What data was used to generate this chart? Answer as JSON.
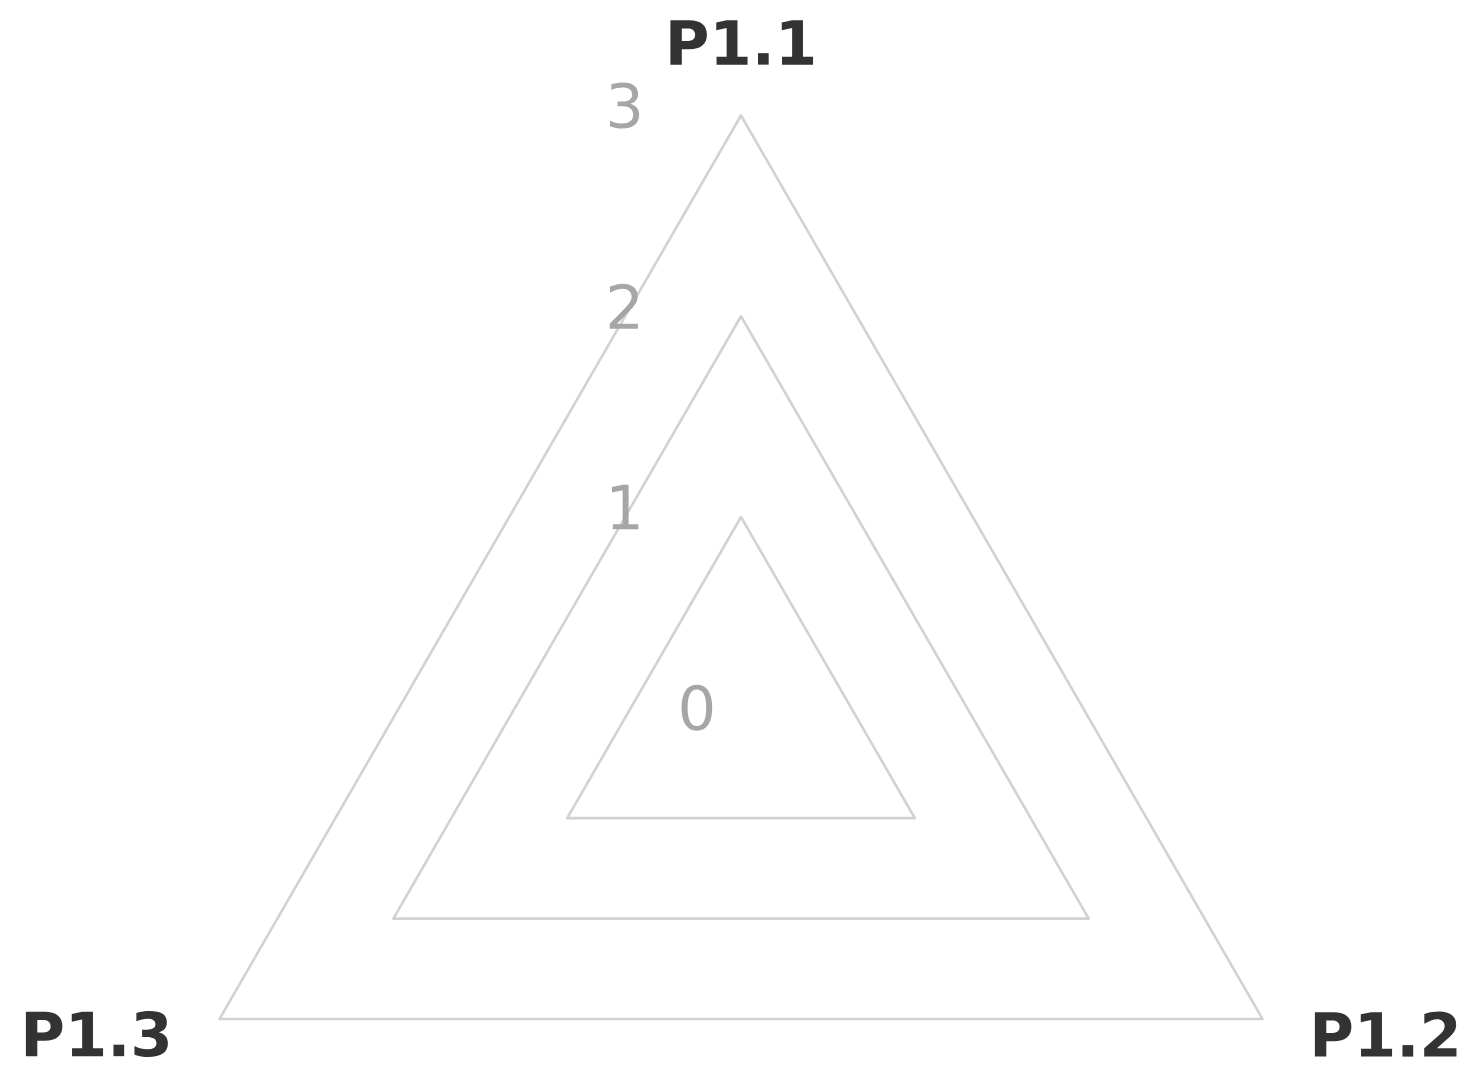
{
  "chart_data": {
    "type": "radar",
    "categories": [
      "P1.1",
      "P1.2",
      "P1.3"
    ],
    "ylim": [
      0,
      3
    ],
    "yticks": [
      0,
      1,
      2,
      3
    ],
    "grid": true
  }
}
